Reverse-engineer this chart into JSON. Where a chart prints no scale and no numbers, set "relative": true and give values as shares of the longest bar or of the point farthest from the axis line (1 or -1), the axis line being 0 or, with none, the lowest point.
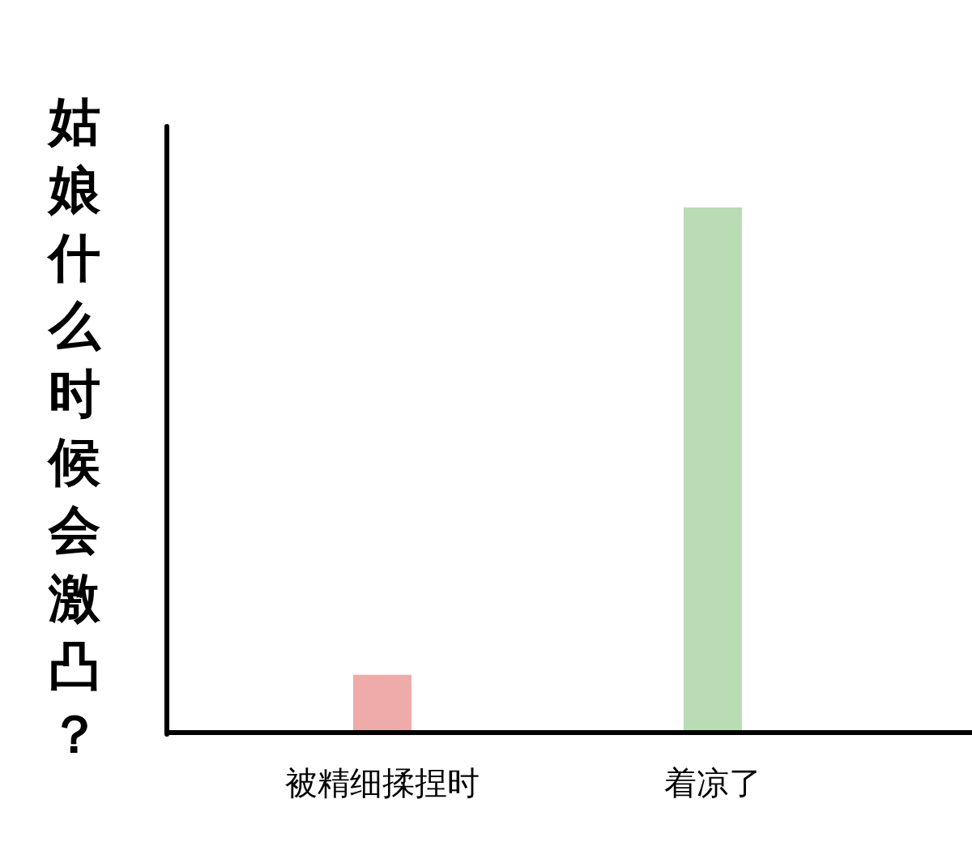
{
  "chart_data": {
    "type": "bar",
    "ylabel": "姑娘什么时候会激凸？",
    "categories": [
      "被精细揉捏时",
      "着凉了"
    ],
    "values": [
      0.11,
      1
    ],
    "colors": [
      "#efaaaa",
      "#b9dcb5"
    ],
    "relative": true
  }
}
